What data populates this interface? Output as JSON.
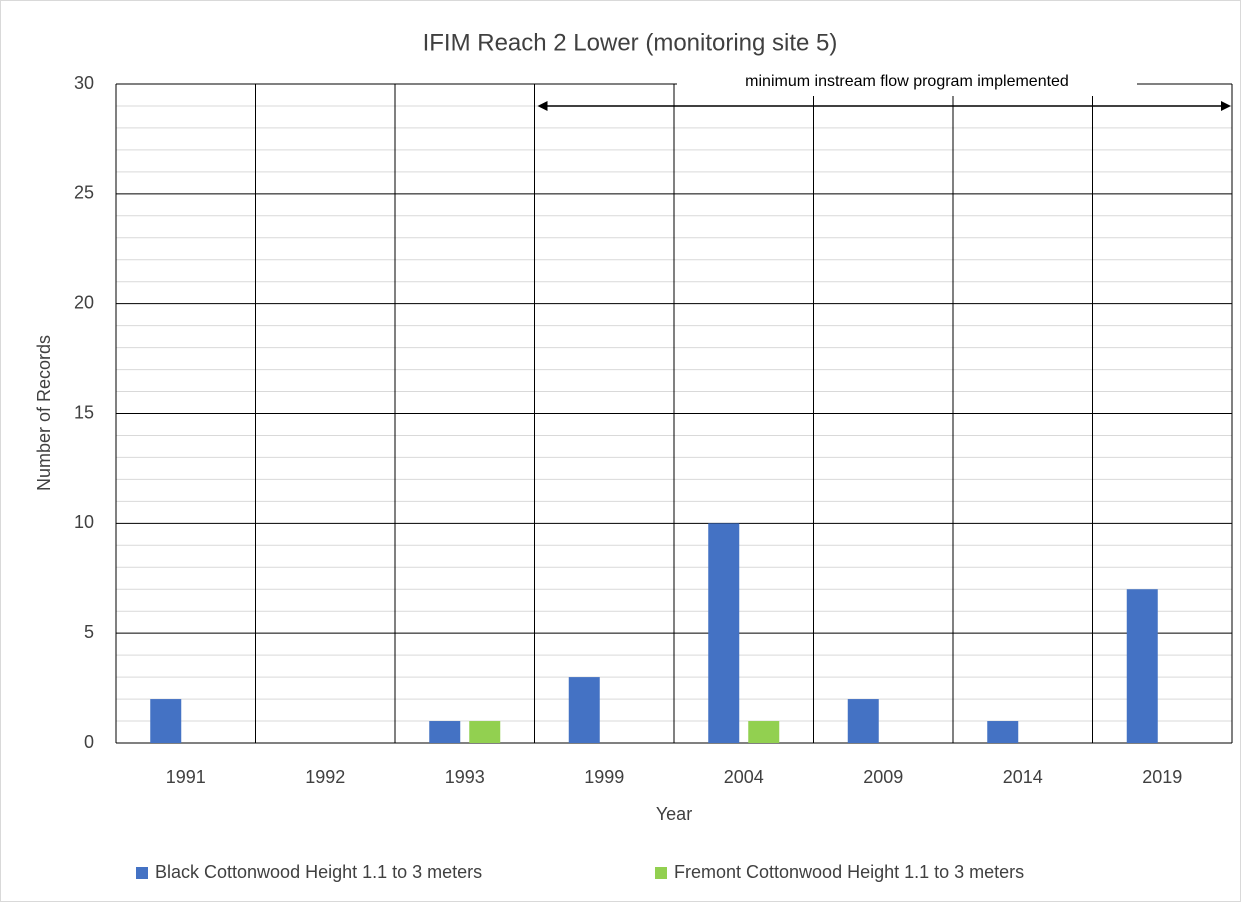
{
  "chart_data": {
    "type": "bar",
    "title": "IFIM Reach 2 Lower (monitoring site 5)",
    "x_label": "Year",
    "y_label": "Number of Records",
    "annotation": "minimum instream flow program implemented",
    "categories": [
      "1991",
      "1992",
      "1993",
      "1999",
      "2004",
      "2009",
      "2014",
      "2019"
    ],
    "series": [
      {
        "name": "Black Cottonwood Height 1.1 to 3 meters",
        "color": "#4472c4",
        "values": [
          2,
          0,
          1,
          3,
          10,
          2,
          1,
          7
        ]
      },
      {
        "name": "Fremont Cottonwood Height 1.1 to 3 meters",
        "color": "#92d050",
        "values": [
          0,
          0,
          1,
          0,
          1,
          0,
          0,
          0
        ]
      }
    ],
    "ylim": [
      0,
      30
    ],
    "yticks": [
      0,
      5,
      10,
      15,
      20,
      25,
      30
    ],
    "grid": true,
    "legend": "bottom"
  }
}
